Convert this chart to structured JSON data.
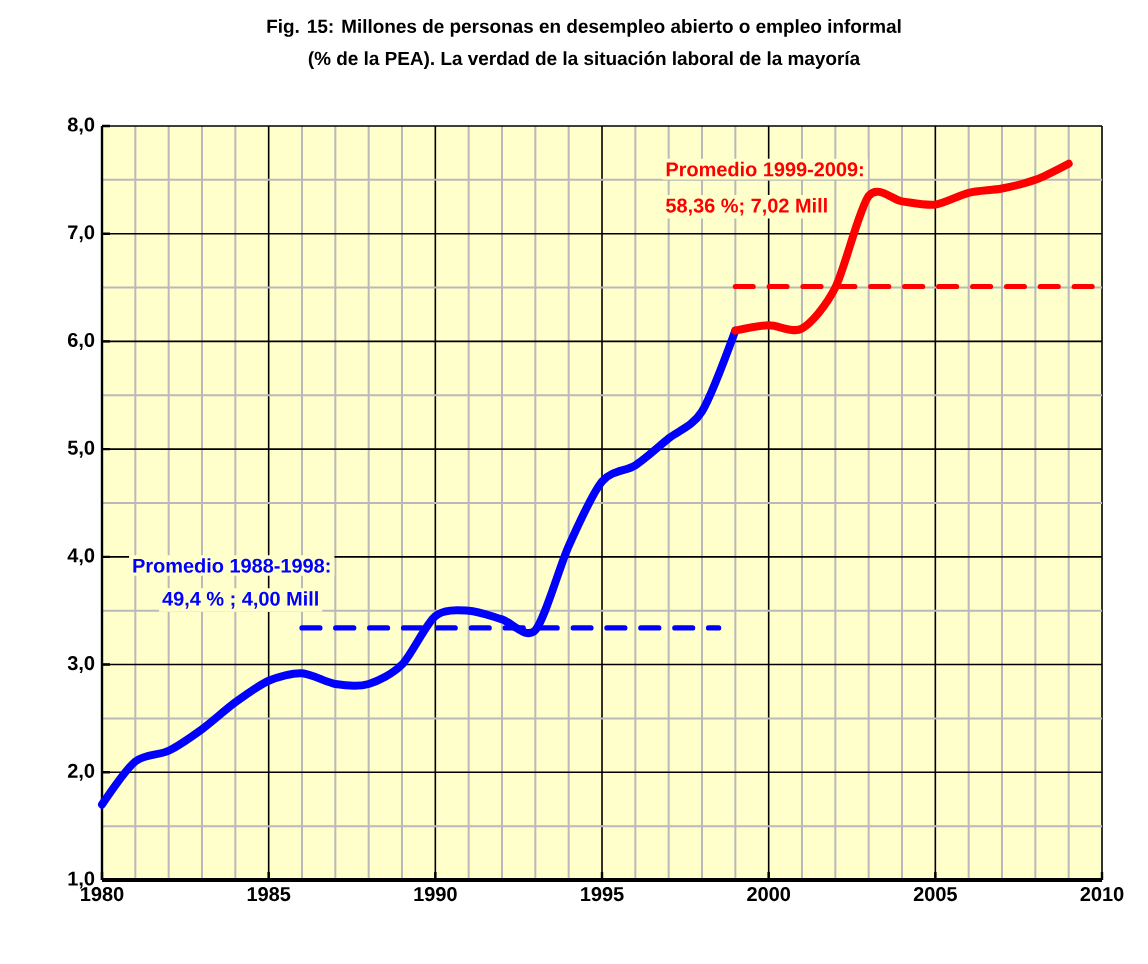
{
  "chart_data": {
    "type": "line",
    "title": "Fig. 15: Millones de personas en desempleo abierto o empleo informal",
    "subtitle": "(% de la PEA). La verdad de la situación laboral de la mayoría",
    "annotations": [
      "Promedio 1988-1998:",
      "49,4 % ; 4,00 Mill",
      "Promedio 1999-2009:",
      "58,36 %; 7,02 Mill"
    ],
    "series": [
      {
        "color": "#0000ff",
        "x": [
          1980,
          1981,
          1982,
          1983,
          1984,
          1985,
          1986,
          1987,
          1988,
          1989,
          1990,
          1991,
          1992,
          1993,
          1994,
          1995,
          1996,
          1997,
          1998,
          1999
        ],
        "values": [
          1.7,
          2.1,
          2.2,
          2.4,
          2.65,
          2.85,
          2.92,
          2.82,
          2.82,
          3.0,
          3.45,
          3.5,
          3.42,
          3.32,
          4.1,
          4.7,
          4.85,
          5.1,
          5.35,
          6.1
        ]
      },
      {
        "color": "#ff0000",
        "x": [
          1999,
          2000,
          2001,
          2002,
          2003,
          2004,
          2005,
          2006,
          2007,
          2008,
          2009
        ],
        "values": [
          6.1,
          6.15,
          6.12,
          6.5,
          7.35,
          7.3,
          7.27,
          7.38,
          7.42,
          7.5,
          7.65
        ]
      },
      {
        "color": "#0000ff",
        "line_style": "dashed",
        "x": [
          1986,
          1998.5
        ],
        "values": [
          3.34,
          3.34
        ]
      },
      {
        "color": "#ff0000",
        "line_style": "dashed",
        "x": [
          1999,
          2010
        ],
        "values": [
          6.51,
          6.51
        ]
      }
    ],
    "xlim": [
      1980,
      2010
    ],
    "xticks": [
      1980,
      1985,
      1990,
      1995,
      2000,
      2005,
      2010
    ],
    "ylim": [
      1,
      8
    ],
    "yticks": [
      {
        "value": 1,
        "label": "1,0"
      },
      {
        "value": 2,
        "label": "2,0"
      },
      {
        "value": 3,
        "label": "3,0"
      },
      {
        "value": 4,
        "label": "4,0"
      },
      {
        "value": 5,
        "label": "5,0"
      },
      {
        "value": 6,
        "label": "6,0"
      },
      {
        "value": 7,
        "label": "7,0"
      },
      {
        "value": 8,
        "label": "8,0"
      }
    ],
    "grid": true,
    "marker": "none"
  }
}
